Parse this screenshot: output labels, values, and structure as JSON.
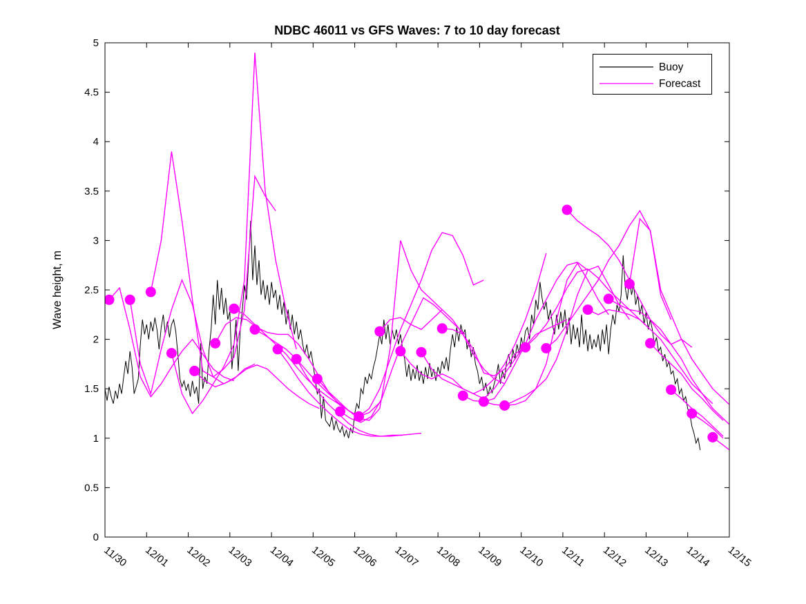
{
  "title": "NDBC 46011 vs GFS Waves: 7 to 10 day forecast",
  "legend": {
    "items": [
      {
        "label": "Buoy",
        "color": "#000000"
      },
      {
        "label": "Forecast",
        "color": "#ff00ff"
      }
    ]
  },
  "chart_data": {
    "type": "line",
    "title": "NDBC 46011 vs GFS Waves: 7 to 10 day forecast",
    "xlabel": "",
    "ylabel": "Wave height, m",
    "ylim": [
      0,
      5
    ],
    "ytick_values": [
      0,
      0.5,
      1,
      1.5,
      2,
      2.5,
      3,
      3.5,
      4,
      4.5,
      5
    ],
    "ytick_labels": [
      "0",
      "0.5",
      "1",
      "1.5",
      "2",
      "2.5",
      "3",
      "3.5",
      "4",
      "4.5",
      "5"
    ],
    "xlim_days": [
      0,
      15
    ],
    "xtick_days": [
      0,
      1,
      2,
      3,
      4,
      5,
      6,
      7,
      8,
      9,
      10,
      11,
      12,
      13,
      14,
      15
    ],
    "xtick_labels": [
      "11/30",
      "12/01",
      "12/02",
      "12/03",
      "12/04",
      "12/05",
      "12/06",
      "12/07",
      "12/08",
      "12/09",
      "12/10",
      "12/11",
      "12/12",
      "12/13",
      "12/14",
      "12/15"
    ],
    "grid": false,
    "legend_position": "northeast",
    "buoy_color": "#000000",
    "forecast_color": "#ff00ff",
    "series": [
      {
        "name": "Buoy",
        "start_day": 0.0,
        "step_days": 0.05,
        "values": [
          1.5,
          1.38,
          1.52,
          1.42,
          1.35,
          1.48,
          1.4,
          1.55,
          1.45,
          1.62,
          1.78,
          1.65,
          1.88,
          1.72,
          1.45,
          1.52,
          1.6,
          1.95,
          2.2,
          2.05,
          2.15,
          2.0,
          2.18,
          2.08,
          2.22,
          2.1,
          1.9,
          2.12,
          2.25,
          2.05,
          2.18,
          2.02,
          2.15,
          2.2,
          2.08,
          1.85,
          1.6,
          1.52,
          1.58,
          1.48,
          1.55,
          1.42,
          1.58,
          1.45,
          1.52,
          1.35,
          1.96,
          1.5,
          1.62,
          1.55,
          1.9,
          2.1,
          2.45,
          2.15,
          2.6,
          2.3,
          2.52,
          2.25,
          2.42,
          2.2,
          2.28,
          1.7,
          1.95,
          2.2,
          1.68,
          2.1,
          2.3,
          2.55,
          2.4,
          2.78,
          3.2,
          2.6,
          2.95,
          2.55,
          2.8,
          2.45,
          2.6,
          2.4,
          2.55,
          2.35,
          2.58,
          2.42,
          2.5,
          2.3,
          2.45,
          2.25,
          2.38,
          2.15,
          2.3,
          2.1,
          2.25,
          2.05,
          2.18,
          2.0,
          2.1,
          1.95,
          1.85,
          1.95,
          1.8,
          1.88,
          1.75,
          1.6,
          1.45,
          1.5,
          1.2,
          1.42,
          1.18,
          1.15,
          1.12,
          1.22,
          1.08,
          1.18,
          1.1,
          1.06,
          1.12,
          1.02,
          1.08,
          1.0,
          1.1,
          1.05,
          1.25,
          1.35,
          1.3,
          1.5,
          1.45,
          1.62,
          1.55,
          1.65,
          1.6,
          1.72,
          1.8,
          1.92,
          2.05,
          1.95,
          2.2,
          2.0,
          2.15,
          1.95,
          2.1,
          2.0,
          2.1,
          1.95,
          2.05,
          1.9,
          1.8,
          1.62,
          1.75,
          1.58,
          1.7,
          1.6,
          1.74,
          1.58,
          1.68,
          1.55,
          1.72,
          1.6,
          1.76,
          1.62,
          1.7,
          1.58,
          1.72,
          1.65,
          1.78,
          1.7,
          1.82,
          1.68,
          1.9,
          2.05,
          1.92,
          2.12,
          1.98,
          2.15,
          2.05,
          2.1,
          1.9,
          2.0,
          1.82,
          1.92,
          1.75,
          1.68,
          1.55,
          1.62,
          1.48,
          1.56,
          1.43,
          1.52,
          1.46,
          1.55,
          1.62,
          1.75,
          1.55,
          1.68,
          1.6,
          1.78,
          1.85,
          1.72,
          1.9,
          1.8,
          1.95,
          1.85,
          2.02,
          1.92,
          2.08,
          2.12,
          2.0,
          2.25,
          2.15,
          2.4,
          2.3,
          2.58,
          2.42,
          2.3,
          2.38,
          2.2,
          2.3,
          2.15,
          2.05,
          2.25,
          2.1,
          2.28,
          2.12,
          2.3,
          2.05,
          2.22,
          1.95,
          2.15,
          2.0,
          2.12,
          1.92,
          2.25,
          1.95,
          2.1,
          1.88,
          2.05,
          1.9,
          2.0,
          1.92,
          2.05,
          1.88,
          2.1,
          1.95,
          2.15,
          1.85,
          2.1,
          2.25,
          2.15,
          2.35,
          2.28,
          2.45,
          2.85,
          2.52,
          2.4,
          2.62,
          2.45,
          2.55,
          2.35,
          2.45,
          2.25,
          2.35,
          2.15,
          2.28,
          2.1,
          2.2,
          2.1,
          1.95,
          2.02,
          1.88,
          1.92,
          1.78,
          1.85,
          1.72,
          1.78,
          1.65,
          1.68,
          1.55,
          1.6,
          1.45,
          1.5,
          1.38,
          1.42,
          1.3,
          1.25,
          1.12,
          1.05,
          0.95,
          1.0,
          0.88
        ]
      }
    ],
    "forecasts": {
      "name": "Forecast",
      "step_days": 0.25,
      "runs": [
        {
          "init_day": 0.1,
          "values": [
            2.4,
            2.52,
            2.1,
            1.62,
            1.42,
            1.55,
            1.72,
            1.88,
            2.0,
            1.85,
            1.7,
            1.62,
            1.58
          ]
        },
        {
          "init_day": 0.6,
          "values": [
            2.4,
            1.75,
            1.45,
            1.9,
            2.3,
            2.6,
            2.35,
            1.9,
            1.62,
            1.55,
            1.6,
            1.7,
            1.75
          ]
        },
        {
          "init_day": 1.1,
          "values": [
            2.48,
            3.0,
            3.9,
            3.2,
            2.4,
            1.68,
            1.62,
            1.7,
            1.82,
            2.3,
            3.65,
            3.45,
            3.3
          ]
        },
        {
          "init_day": 1.6,
          "values": [
            1.86,
            1.45,
            1.25,
            1.38,
            1.55,
            1.72,
            1.95,
            2.6,
            4.9,
            3.5,
            2.8,
            2.3,
            1.9
          ]
        },
        {
          "init_day": 2.15,
          "values": [
            1.68,
            1.58,
            1.52,
            1.56,
            1.62,
            1.7,
            1.74,
            1.7,
            1.6,
            1.5,
            1.42,
            1.35,
            1.3
          ]
        },
        {
          "init_day": 2.65,
          "values": [
            1.96,
            2.15,
            2.22,
            2.2,
            2.12,
            2.07,
            2.05,
            2.05,
            1.95,
            1.8,
            1.62,
            1.45,
            1.33
          ]
        },
        {
          "init_day": 3.1,
          "values": [
            2.31,
            2.25,
            2.15,
            2.05,
            1.95,
            1.85,
            1.72,
            1.6,
            1.5,
            1.42,
            1.35,
            1.28,
            1.22
          ]
        },
        {
          "init_day": 3.6,
          "values": [
            2.1,
            2.04,
            1.97,
            1.9,
            1.8,
            1.68,
            1.56,
            1.46,
            1.36,
            1.28,
            1.22,
            1.26,
            1.36
          ]
        },
        {
          "init_day": 4.15,
          "values": [
            1.9,
            1.76,
            1.6,
            1.46,
            1.35,
            1.25,
            1.16,
            1.08,
            1.04,
            1.02,
            1.02,
            1.03,
            1.03
          ]
        },
        {
          "init_day": 4.6,
          "values": [
            1.8,
            1.62,
            1.48,
            1.35,
            1.25,
            1.15,
            1.08,
            1.04,
            1.02,
            1.02,
            1.03,
            1.04,
            1.05
          ]
        },
        {
          "init_day": 5.1,
          "values": [
            1.6,
            1.48,
            1.38,
            1.28,
            1.2,
            1.18,
            1.3,
            1.9,
            3.0,
            2.7,
            2.5,
            2.4,
            2.3
          ]
        },
        {
          "init_day": 5.65,
          "values": [
            1.27,
            1.2,
            1.16,
            1.22,
            1.4,
            1.7,
            1.98,
            2.2,
            2.42,
            2.35,
            2.25,
            2.15,
            2.05
          ]
        },
        {
          "init_day": 6.1,
          "values": [
            1.22,
            1.3,
            1.5,
            1.8,
            2.1,
            2.35,
            2.6,
            2.9,
            3.08,
            3.05,
            2.85,
            2.55,
            2.6
          ]
        },
        {
          "init_day": 6.6,
          "values": [
            2.08,
            2.2,
            2.22,
            2.15,
            2.1,
            2.2,
            2.3,
            2.2,
            2.05,
            1.85,
            1.7,
            1.6,
            1.55
          ]
        },
        {
          "init_day": 7.1,
          "values": [
            1.88,
            1.75,
            1.65,
            1.6,
            1.65,
            1.6,
            1.5,
            1.45,
            1.4,
            1.5,
            1.65,
            1.8,
            1.95
          ]
        },
        {
          "init_day": 7.6,
          "values": [
            1.87,
            1.7,
            1.6,
            1.55,
            1.5,
            1.45,
            1.5,
            1.6,
            1.75,
            1.95,
            2.2,
            2.5,
            2.87
          ]
        },
        {
          "init_day": 8.1,
          "values": [
            2.11,
            2.1,
            2.05,
            1.9,
            1.66,
            1.63,
            1.7,
            1.85,
            1.93,
            2.05,
            2.1,
            2.15,
            2.2
          ]
        },
        {
          "init_day": 8.6,
          "values": [
            1.43,
            1.38,
            1.37,
            1.4,
            1.55,
            1.75,
            1.95,
            2.2,
            2.4,
            2.6,
            2.75,
            2.78,
            2.7
          ]
        },
        {
          "init_day": 9.1,
          "values": [
            1.37,
            1.34,
            1.33,
            1.34,
            1.38,
            1.5,
            1.75,
            2.2,
            2.6,
            2.77,
            2.6,
            2.4,
            2.25
          ]
        },
        {
          "init_day": 9.6,
          "values": [
            1.33,
            1.38,
            1.43,
            1.5,
            1.6,
            1.8,
            2.1,
            2.45,
            2.7,
            2.74,
            2.55,
            2.35,
            2.2
          ]
        },
        {
          "init_day": 10.1,
          "values": [
            1.92,
            2.02,
            2.15,
            2.32,
            2.52,
            2.68,
            2.71,
            2.62,
            2.5,
            2.4,
            2.3,
            2.2,
            2.1
          ]
        },
        {
          "init_day": 10.6,
          "values": [
            1.91,
            2.0,
            2.15,
            2.3,
            2.45,
            2.6,
            2.8,
            2.95,
            3.15,
            3.3,
            3.1,
            2.45,
            2.2
          ]
        },
        {
          "init_day": 11.1,
          "values": [
            3.31,
            3.2,
            3.12,
            3.05,
            2.95,
            2.8,
            2.6,
            2.4,
            2.2,
            2.05,
            1.95,
            2.0,
            1.92
          ]
        },
        {
          "init_day": 11.6,
          "values": [
            2.3,
            2.25,
            2.3,
            2.28,
            2.25,
            2.2,
            2.1,
            2.0,
            1.85,
            1.7,
            1.55,
            1.45,
            1.35
          ]
        },
        {
          "init_day": 12.1,
          "values": [
            2.41,
            2.35,
            2.3,
            2.28,
            2.2,
            2.1,
            1.95,
            1.8,
            1.6,
            1.45,
            1.3,
            1.2,
            1.1
          ]
        },
        {
          "init_day": 12.6,
          "values": [
            2.56,
            3.22,
            3.1,
            2.5,
            2.25,
            2.0,
            1.8,
            1.65,
            1.5,
            1.4,
            1.3
          ]
        },
        {
          "init_day": 13.1,
          "values": [
            1.96,
            1.85,
            1.75,
            1.65,
            1.5,
            1.4,
            1.28,
            1.18
          ]
        },
        {
          "init_day": 13.6,
          "values": [
            1.49,
            1.4,
            1.3,
            1.22,
            1.12,
            1.02
          ]
        },
        {
          "init_day": 14.1,
          "values": [
            1.25,
            1.18,
            1.1,
            1.0
          ]
        },
        {
          "init_day": 14.6,
          "values": [
            1.01,
            0.93,
            0.85
          ]
        }
      ]
    },
    "forecast_start_markers": [
      [
        0.1,
        2.4
      ],
      [
        0.6,
        2.4
      ],
      [
        1.1,
        2.48
      ],
      [
        1.6,
        1.86
      ],
      [
        2.15,
        1.68
      ],
      [
        2.65,
        1.96
      ],
      [
        3.1,
        2.31
      ],
      [
        3.6,
        2.1
      ],
      [
        4.15,
        1.9
      ],
      [
        4.6,
        1.8
      ],
      [
        5.1,
        1.6
      ],
      [
        5.65,
        1.27
      ],
      [
        6.1,
        1.22
      ],
      [
        6.6,
        2.08
      ],
      [
        7.1,
        1.88
      ],
      [
        7.6,
        1.87
      ],
      [
        8.1,
        2.11
      ],
      [
        8.6,
        1.43
      ],
      [
        9.1,
        1.37
      ],
      [
        9.6,
        1.33
      ],
      [
        10.1,
        1.92
      ],
      [
        10.6,
        1.91
      ],
      [
        11.1,
        3.31
      ],
      [
        11.6,
        2.3
      ],
      [
        12.1,
        2.41
      ],
      [
        12.6,
        2.56
      ],
      [
        13.1,
        1.96
      ],
      [
        13.6,
        1.49
      ],
      [
        14.1,
        1.25
      ],
      [
        14.6,
        1.01
      ]
    ]
  }
}
